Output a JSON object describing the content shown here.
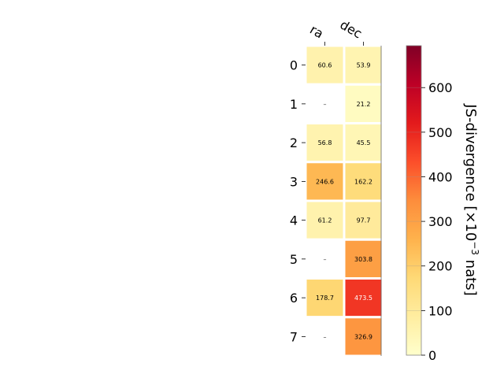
{
  "chart_data": {
    "type": "heatmap",
    "columns": [
      "ra",
      "dec"
    ],
    "rows": [
      "0",
      "1",
      "2",
      "3",
      "4",
      "5",
      "6",
      "7"
    ],
    "values": [
      [
        60.6,
        53.9
      ],
      [
        null,
        21.2
      ],
      [
        56.8,
        45.5
      ],
      [
        246.6,
        162.2
      ],
      [
        61.2,
        97.7
      ],
      [
        null,
        303.8
      ],
      [
        178.7,
        473.5
      ],
      [
        null,
        326.9
      ]
    ],
    "missing_label": "–",
    "colorbar": {
      "label": "JS-divergence [×10",
      "label_exponent": "−3",
      "label_suffix": " nats]",
      "range": [
        0,
        694
      ],
      "ticks": [
        0,
        100,
        200,
        300,
        400,
        500,
        600
      ],
      "colormap": "YlOrRd"
    }
  }
}
